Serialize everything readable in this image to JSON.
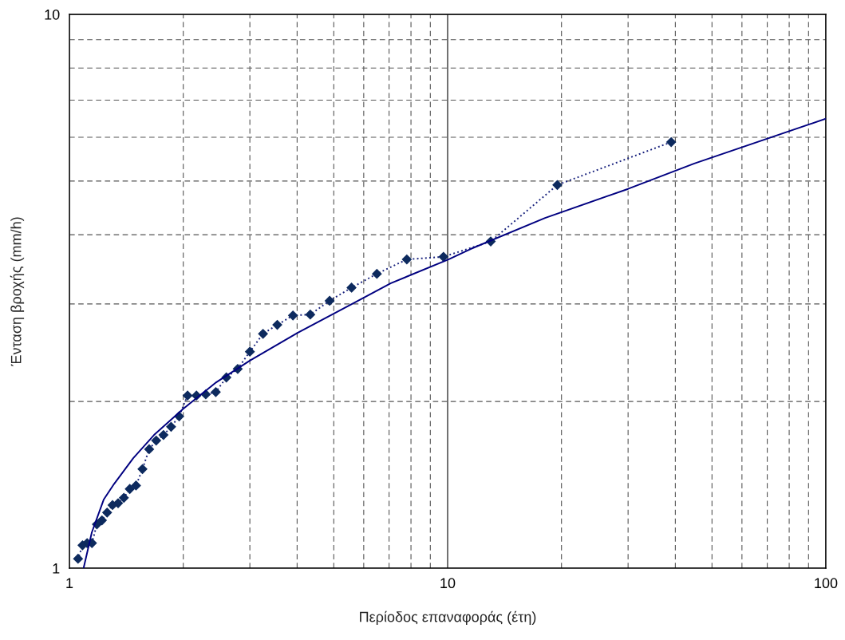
{
  "chart_data": {
    "type": "line",
    "xlabel": "Περίοδος επαναφοράς (έτη)",
    "ylabel": "Ένταση βροχής (mm/h)",
    "log": "xy",
    "xlim": [
      1,
      100
    ],
    "ylim": [
      1,
      10
    ],
    "xticks": [
      1,
      10,
      100
    ],
    "yticks": [
      1,
      10
    ],
    "grid": true,
    "legend": false,
    "series": [
      {
        "marker": "diamond",
        "line_style": "dotted",
        "color": "#1a237e",
        "x": [
          39,
          19.5,
          13,
          9.75,
          7.8,
          6.5,
          5.57,
          4.875,
          4.333,
          3.9,
          3.545,
          3.25,
          3.0,
          2.786,
          2.6,
          2.438,
          2.294,
          2.167,
          2.053,
          1.95,
          1.857,
          1.773,
          1.696,
          1.625,
          1.56,
          1.5,
          1.444,
          1.393,
          1.345,
          1.3,
          1.258,
          1.219,
          1.182,
          1.147,
          1.114,
          1.083,
          1.054
        ],
        "values": [
          5.88,
          4.92,
          3.89,
          3.65,
          3.61,
          3.4,
          3.21,
          3.04,
          2.87,
          2.86,
          2.75,
          2.65,
          2.46,
          2.29,
          2.21,
          2.08,
          2.06,
          2.05,
          2.05,
          1.88,
          1.8,
          1.74,
          1.7,
          1.64,
          1.51,
          1.41,
          1.39,
          1.34,
          1.31,
          1.3,
          1.26,
          1.22,
          1.2,
          1.11,
          1.11,
          1.1,
          1.04
        ]
      },
      {
        "marker": "none",
        "line_style": "solid",
        "color": "#000080",
        "x": [
          1.09,
          1.146,
          1.232,
          1.313,
          1.475,
          1.674,
          2.0,
          2.43,
          3.0,
          4.01,
          5.64,
          7.08,
          10.05,
          11.5,
          18.1,
          30,
          44.9,
          100
        ],
        "values": [
          1.0,
          1.16,
          1.33,
          1.42,
          1.58,
          1.74,
          1.94,
          2.16,
          2.37,
          2.66,
          3.01,
          3.27,
          3.61,
          3.77,
          4.29,
          4.84,
          5.38,
          6.48
        ]
      }
    ]
  }
}
